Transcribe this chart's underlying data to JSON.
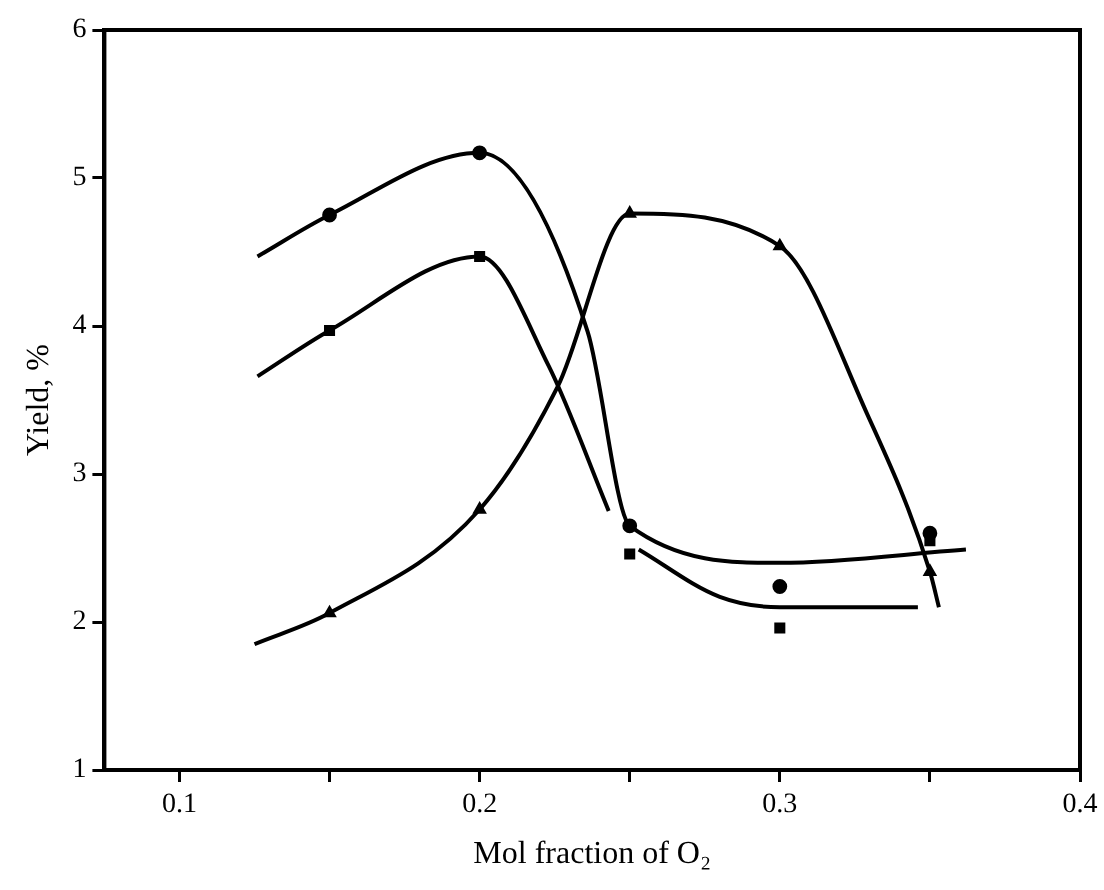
{
  "chart_data": {
    "type": "scatter",
    "xlabel": "Mol fraction of O₂",
    "ylabel": "Yield, %",
    "xlim": [
      0.075,
      0.4
    ],
    "ylim": [
      1,
      6
    ],
    "xticks": [
      0.1,
      {
        "value": 0.15,
        "label": null
      },
      0.2,
      {
        "value": 0.25,
        "label": null
      },
      0.3,
      {
        "value": 0.35,
        "label": null
      },
      0.4
    ],
    "yticks": [
      1,
      2,
      3,
      4,
      5,
      6
    ],
    "grid": false,
    "legend": false,
    "series": [
      {
        "marker": "circle",
        "color": "#000000",
        "x": [
          0.15,
          0.2,
          0.25,
          0.3,
          0.35
        ],
        "values": [
          4.75,
          5.17,
          2.65,
          2.24,
          2.6
        ]
      },
      {
        "marker": "square",
        "color": "#000000",
        "x": [
          0.15,
          0.2,
          0.25,
          0.3,
          0.35
        ],
        "values": [
          3.97,
          4.47,
          2.46,
          1.96,
          2.55
        ]
      },
      {
        "marker": "triangle",
        "color": "#000000",
        "x": [
          0.15,
          0.2,
          0.25,
          0.3,
          0.35
        ],
        "values": [
          2.06,
          2.76,
          4.76,
          4.54,
          2.34
        ]
      },
      {
        "type": "line",
        "marker": "none",
        "color": "#000000",
        "x": [
          0.126,
          0.15,
          0.2,
          0.236,
          0.25,
          0.3,
          0.362
        ],
        "values": [
          4.47,
          4.75,
          5.17,
          3.96,
          2.65,
          2.4,
          2.49
        ]
      },
      {
        "type": "line",
        "marker": "none",
        "color": "#000000",
        "x": [
          0.126,
          0.15,
          0.2,
          0.223,
          0.243,
          0.248,
          0.253,
          0.28,
          0.3,
          0.346
        ],
        "values": [
          3.66,
          3.97,
          4.47,
          3.73,
          2.75,
          null,
          2.49,
          2.17,
          2.1,
          2.1
        ]
      },
      {
        "type": "line",
        "marker": "none",
        "color": "#000000",
        "x": [
          0.125,
          0.15,
          0.2,
          0.226,
          0.25,
          0.3,
          0.329,
          0.35,
          0.353
        ],
        "values": [
          1.85,
          2.06,
          2.76,
          3.59,
          4.76,
          4.54,
          3.41,
          2.34,
          2.1
        ]
      }
    ]
  }
}
